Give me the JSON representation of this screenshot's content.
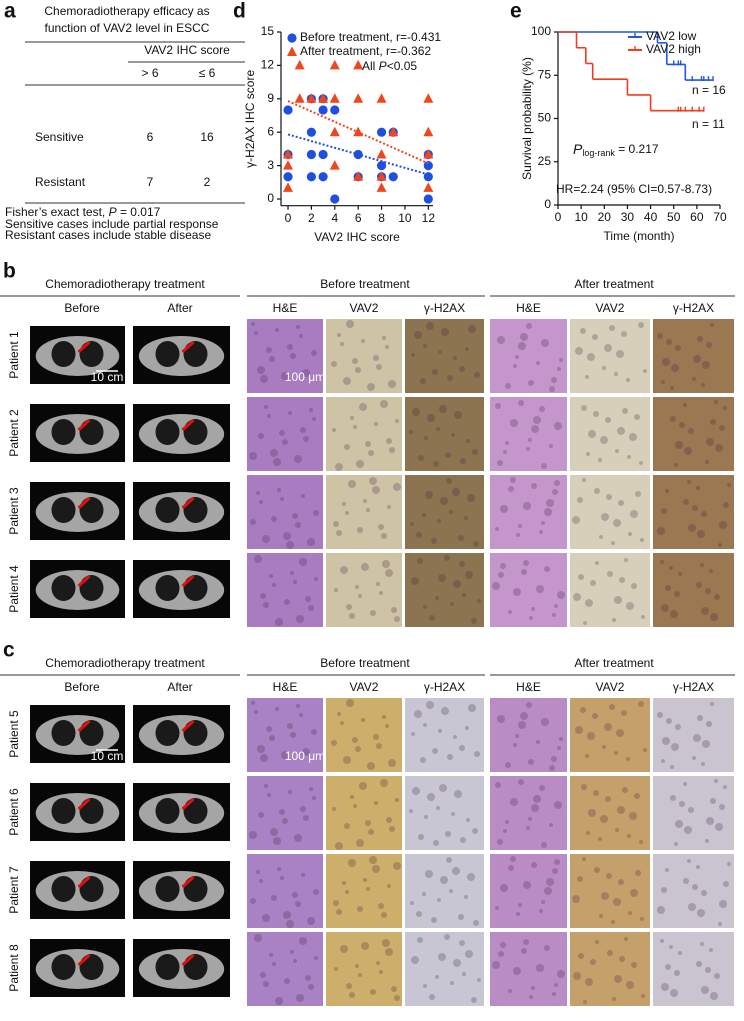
{
  "table": {
    "panel_label": "a",
    "title_lines": [
      "Chemoradiotherapy efficacy as",
      "function of VAV2 level in ESCC"
    ],
    "group_header": "VAV2 IHC score",
    "columns": [
      "> 6",
      "≤ 6"
    ],
    "rows": [
      [
        "Sensitive",
        6,
        16
      ],
      [
        "Resistant",
        7,
        2
      ]
    ],
    "footnote_parts": [
      "Fisher’s exact test, ",
      "P",
      " = 0.017"
    ],
    "footnotes": [
      "Sensitive cases include partial response",
      "Resistant cases include stable disease"
    ]
  },
  "chart_data": [
    {
      "type": "scatter",
      "panel_label": "d",
      "xlabel": "VAV2 IHC score",
      "ylabel": "γ-H2AX IHC score",
      "xlim": [
        -0.6,
        12.4
      ],
      "xticks": [
        0,
        2,
        4,
        6,
        8,
        10,
        12
      ],
      "ylim": [
        -0.6,
        15
      ],
      "yticks": [
        0,
        3,
        6,
        9,
        12,
        15
      ],
      "legend": "upper left",
      "annotation_parts": [
        "All ",
        "P",
        "<0.05"
      ],
      "series": [
        {
          "name": "Before treatment, r=-0.431",
          "color": "#1f4fe0",
          "marker": "circle",
          "x": [
            0,
            0,
            0,
            2,
            2,
            2,
            2,
            3,
            3,
            3,
            3,
            4,
            4,
            6,
            6,
            8,
            8,
            8,
            9,
            9,
            12,
            12,
            12,
            12
          ],
          "values": [
            8,
            4,
            2,
            9,
            6,
            4,
            2,
            9,
            8,
            4,
            2,
            8,
            0,
            4,
            2,
            6,
            3,
            2,
            6,
            2,
            4,
            3,
            2,
            0
          ],
          "fit": {
            "x": [
              0,
              12
            ],
            "values": [
              5.8,
              2.2
            ]
          }
        },
        {
          "name": "After treatment, r=-0.362",
          "color": "#f0461e",
          "marker": "triangle",
          "x": [
            0,
            0,
            0,
            1,
            1,
            2,
            3,
            4,
            4,
            4,
            4,
            6,
            6,
            6,
            6,
            8,
            8,
            8,
            8,
            9,
            12,
            12,
            12,
            12
          ],
          "values": [
            1,
            3,
            4,
            12,
            9,
            9,
            9,
            12,
            9,
            6,
            3,
            12,
            9,
            6,
            2,
            9,
            4,
            2,
            1,
            6,
            9,
            6,
            4,
            1
          ],
          "fit": {
            "x": [
              0,
              12
            ],
            "values": [
              8.8,
              3.2
            ]
          }
        }
      ]
    },
    {
      "type": "survival",
      "panel_label": "e",
      "xlabel": "Time (month)",
      "ylabel": "Survival probability (%)",
      "xlim": [
        0,
        70
      ],
      "xticks": [
        0,
        10,
        20,
        30,
        40,
        50,
        60,
        70
      ],
      "ylim": [
        0,
        100
      ],
      "yticks": [
        0,
        25,
        50,
        75,
        100
      ],
      "legend": "upper right",
      "p_parts": [
        "P",
        "log-rank",
        " = 0.217"
      ],
      "hr": "HR=2.24 (95% CI=0.57-8.73)",
      "series": [
        {
          "name": "VAV2 low",
          "color": "#2255e0",
          "n_label": "n = 16",
          "x": [
            0,
            43,
            47,
            55
          ],
          "values": [
            100,
            93.75,
            81.25,
            72.2
          ],
          "censor_x": [
            50,
            52,
            53,
            58,
            62,
            63,
            65,
            67
          ]
        },
        {
          "name": "VAV2 high",
          "color": "#f03c1e",
          "n_label": "n = 11",
          "x": [
            0,
            8,
            12,
            15,
            30,
            40
          ],
          "values": [
            100,
            90.9,
            81.8,
            72.7,
            63.6,
            54.5
          ],
          "censor_x": [
            52,
            53,
            55,
            58,
            61,
            63
          ]
        }
      ]
    }
  ],
  "image_panels": [
    {
      "panel_label": "b",
      "header": "Chemoradiotherapy treatment",
      "ct_columns": [
        "Before",
        "After"
      ],
      "groups": [
        {
          "title": "Before treatment",
          "stains": [
            "H&E",
            "VAV2",
            "γ-H2AX"
          ]
        },
        {
          "title": "After treatment",
          "stains": [
            "H&E",
            "VAV2",
            "γ-H2AX"
          ]
        }
      ],
      "patients": [
        "Patient 1",
        "Patient 2",
        "Patient 3",
        "Patient 4"
      ],
      "ct_scale": "10 cm",
      "micro_scale": "100 μm"
    },
    {
      "panel_label": "c",
      "header": "Chemoradiotherapy treatment",
      "ct_columns": [
        "Before",
        "After"
      ],
      "groups": [
        {
          "title": "Before treatment",
          "stains": [
            "H&E",
            "VAV2",
            "γ-H2AX"
          ]
        },
        {
          "title": "After treatment",
          "stains": [
            "H&E",
            "VAV2",
            "γ-H2AX"
          ]
        }
      ],
      "patients": [
        "Patient 5",
        "Patient 6",
        "Patient 7",
        "Patient 8"
      ],
      "ct_scale": "10 cm",
      "micro_scale": "100 μm"
    }
  ]
}
